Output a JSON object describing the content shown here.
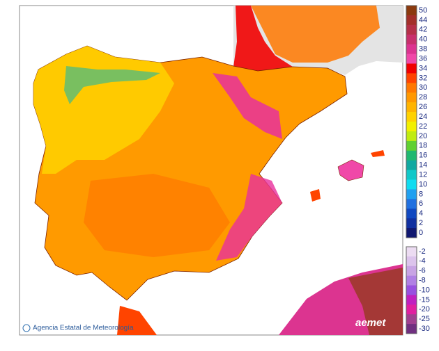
{
  "footer": {
    "agency": "Agencia Estatal de Meteorología",
    "logo": "aemet"
  },
  "legend": {
    "upper": [
      {
        "label": "50",
        "color": "#8b3a0f"
      },
      {
        "label": "44",
        "color": "#a3302a"
      },
      {
        "label": "42",
        "color": "#b53048"
      },
      {
        "label": "40",
        "color": "#c8306c"
      },
      {
        "label": "38",
        "color": "#dc3490"
      },
      {
        "label": "36",
        "color": "#f048a8"
      },
      {
        "label": "34",
        "color": "#f00000"
      },
      {
        "label": "32",
        "color": "#ff4400"
      },
      {
        "label": "30",
        "color": "#ff7800"
      },
      {
        "label": "28",
        "color": "#ff9800"
      },
      {
        "label": "26",
        "color": "#ffb400"
      },
      {
        "label": "24",
        "color": "#ffd200"
      },
      {
        "label": "22",
        "color": "#f2f000"
      },
      {
        "label": "20",
        "color": "#c0ec10"
      },
      {
        "label": "18",
        "color": "#60d030"
      },
      {
        "label": "16",
        "color": "#20b870"
      },
      {
        "label": "14",
        "color": "#10a8a0"
      },
      {
        "label": "12",
        "color": "#10c8c8"
      },
      {
        "label": "10",
        "color": "#10dcf0"
      },
      {
        "label": "8",
        "color": "#20a0f0"
      },
      {
        "label": "6",
        "color": "#2070e0"
      },
      {
        "label": "4",
        "color": "#1048c0"
      },
      {
        "label": "2",
        "color": "#1030a0"
      },
      {
        "label": "0",
        "color": "#101870"
      }
    ],
    "lower": [
      {
        "label": "-2",
        "color": "#ecdcf2"
      },
      {
        "label": "-4",
        "color": "#dcc4ec"
      },
      {
        "label": "-6",
        "color": "#c8a4e4"
      },
      {
        "label": "-8",
        "color": "#b080e4"
      },
      {
        "label": "-10",
        "color": "#9850e0"
      },
      {
        "label": "-15",
        "color": "#c020c0"
      },
      {
        "label": "-20",
        "color": "#e020a0"
      },
      {
        "label": "-25",
        "color": "#a04090"
      },
      {
        "label": "-30",
        "color": "#703080"
      }
    ]
  }
}
